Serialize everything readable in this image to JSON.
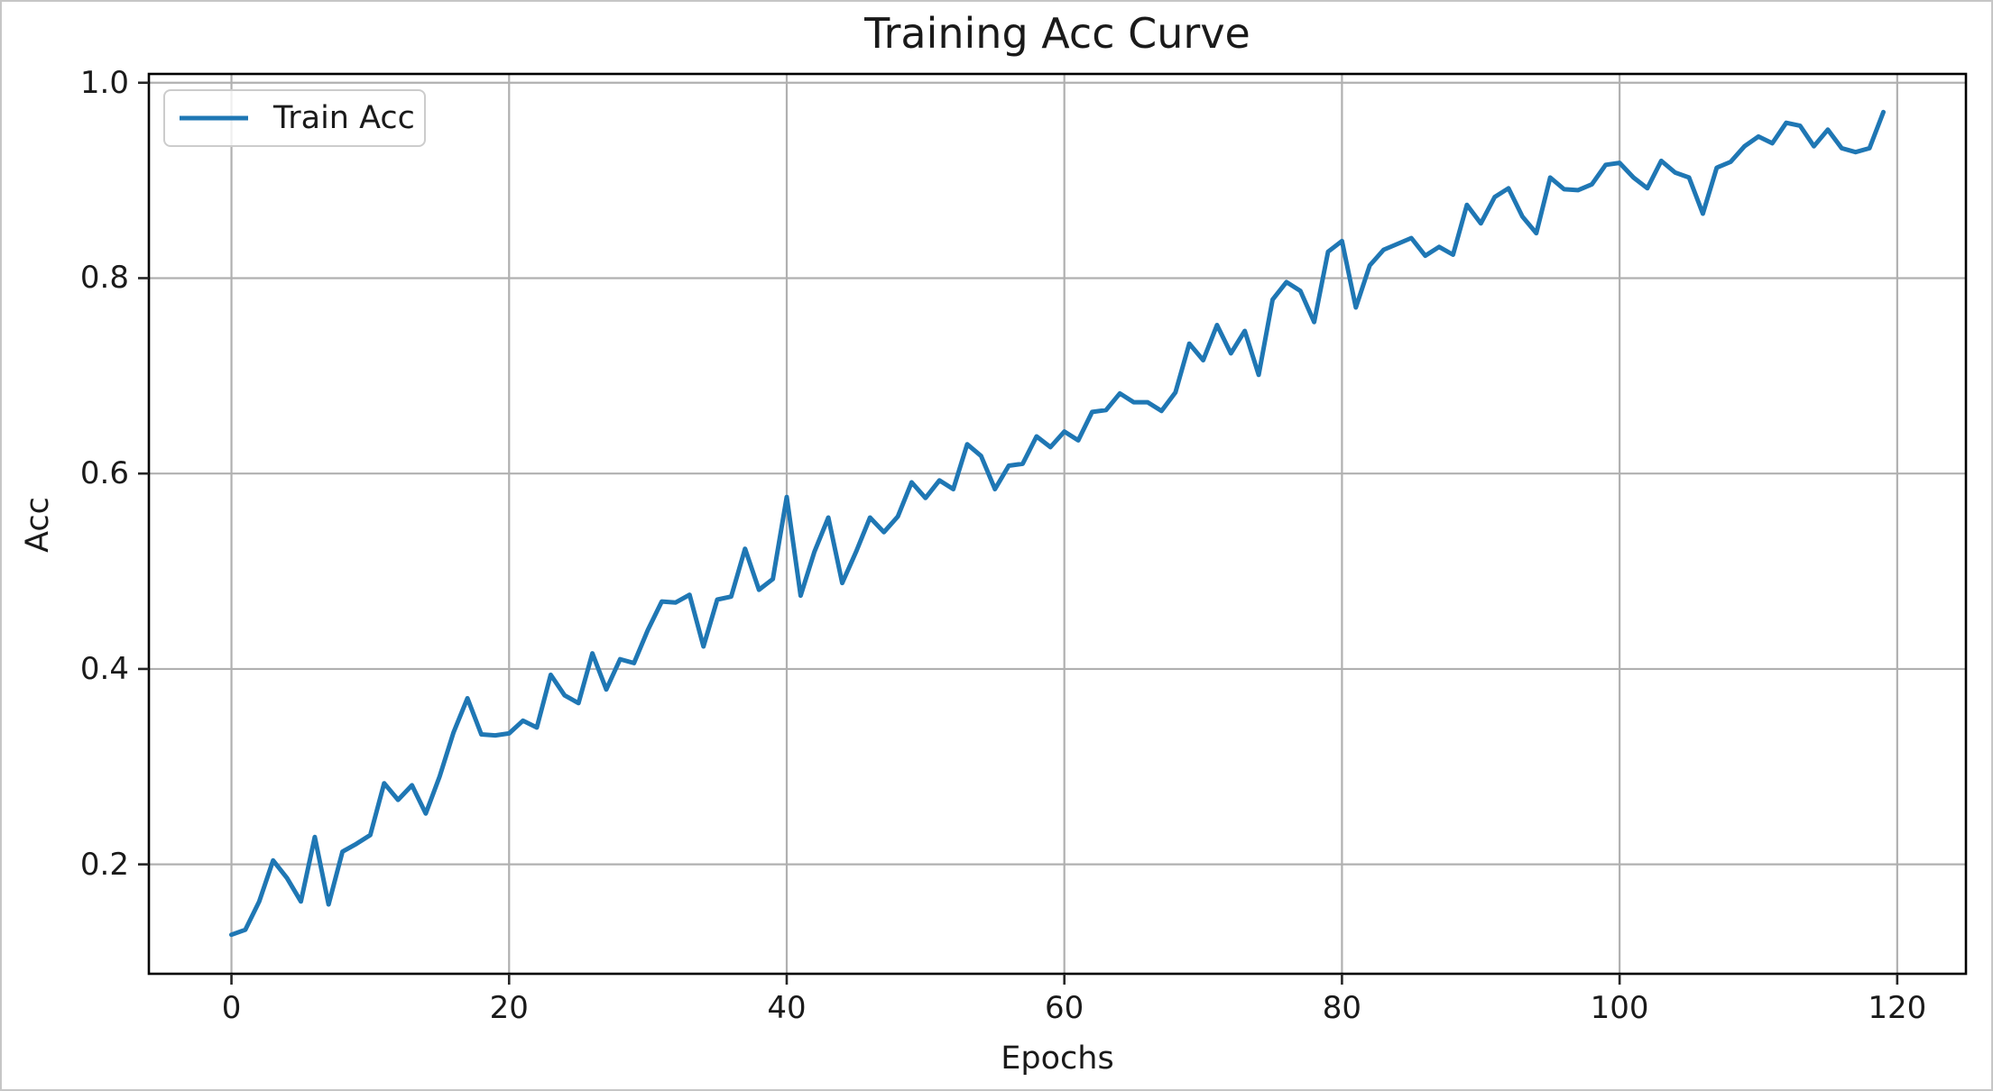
{
  "window": {
    "background": "#ffffff",
    "border_color": "#c6c6c6"
  },
  "style": {
    "accent": "#1f77b4",
    "grid_color": "#b0b0b0",
    "spine_color": "#000000",
    "tick_color": "#262626",
    "text_color": "#1a1a1a"
  },
  "chart_data": {
    "type": "line",
    "title": "Training Acc Curve",
    "xlabel": "Epochs",
    "ylabel": "Acc",
    "grid": true,
    "legend": {
      "position": "upper left",
      "entries": [
        "Train Acc"
      ]
    },
    "xlim": [
      -5.95,
      124.95
    ],
    "ylim": [
      0.088,
      1.009
    ],
    "xticks": [
      0,
      20,
      40,
      60,
      80,
      100,
      120
    ],
    "yticks": [
      0.2,
      0.4,
      0.6,
      0.8,
      1.0
    ],
    "series": [
      {
        "name": "Train Acc",
        "color": "#1f77b4",
        "x_start": 0,
        "x_step": 1,
        "values": [
          0.128,
          0.133,
          0.162,
          0.204,
          0.186,
          0.162,
          0.228,
          0.159,
          0.213,
          0.221,
          0.23,
          0.283,
          0.266,
          0.281,
          0.252,
          0.29,
          0.335,
          0.37,
          0.333,
          0.332,
          0.334,
          0.347,
          0.34,
          0.394,
          0.373,
          0.365,
          0.416,
          0.379,
          0.41,
          0.406,
          0.44,
          0.469,
          0.468,
          0.476,
          0.423,
          0.471,
          0.474,
          0.523,
          0.481,
          0.492,
          0.576,
          0.475,
          0.52,
          0.555,
          0.488,
          0.52,
          0.555,
          0.54,
          0.556,
          0.591,
          0.575,
          0.593,
          0.584,
          0.63,
          0.618,
          0.584,
          0.608,
          0.61,
          0.638,
          0.627,
          0.643,
          0.634,
          0.663,
          0.665,
          0.682,
          0.673,
          0.673,
          0.664,
          0.683,
          0.733,
          0.716,
          0.752,
          0.723,
          0.746,
          0.701,
          0.778,
          0.796,
          0.787,
          0.755,
          0.827,
          0.838,
          0.77,
          0.813,
          0.829,
          0.835,
          0.841,
          0.823,
          0.832,
          0.824,
          0.875,
          0.856,
          0.883,
          0.892,
          0.863,
          0.846,
          0.903,
          0.891,
          0.89,
          0.896,
          0.916,
          0.918,
          0.903,
          0.892,
          0.92,
          0.908,
          0.903,
          0.866,
          0.913,
          0.919,
          0.935,
          0.945,
          0.938,
          0.959,
          0.956,
          0.935,
          0.952,
          0.933,
          0.929,
          0.933,
          0.97
        ]
      }
    ]
  }
}
